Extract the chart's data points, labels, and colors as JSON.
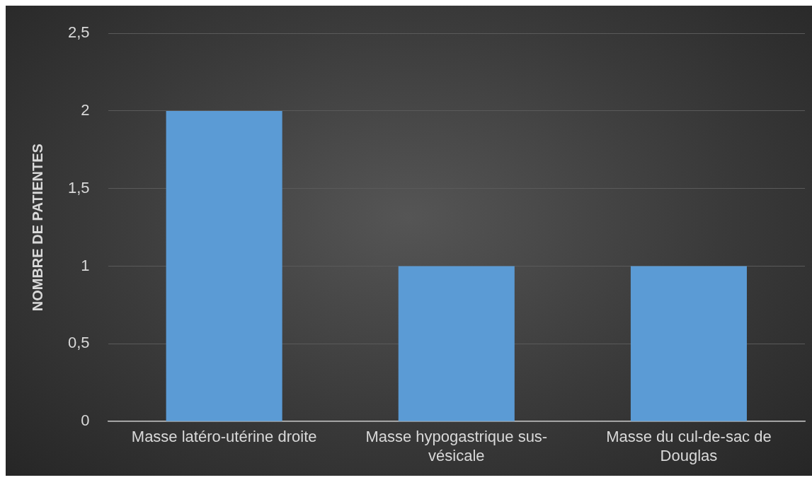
{
  "chart_data": {
    "type": "bar",
    "ylabel": "NOMBRE DE PATIENTES",
    "categories": [
      "Masse latéro-utérine droite",
      "Masse hypogastrique sus-vésicale",
      "Masse du cul-de-sac de Douglas"
    ],
    "values": [
      2,
      1,
      1
    ],
    "color": "#5b9bd5",
    "ylim": [
      0,
      2.5
    ],
    "yticks": [
      0,
      {
        "value": 0.5,
        "label": "0,5"
      },
      1,
      {
        "value": 1.5,
        "label": "1,5"
      },
      2,
      {
        "value": 2.5,
        "label": "2,5"
      }
    ],
    "grid": "y"
  }
}
